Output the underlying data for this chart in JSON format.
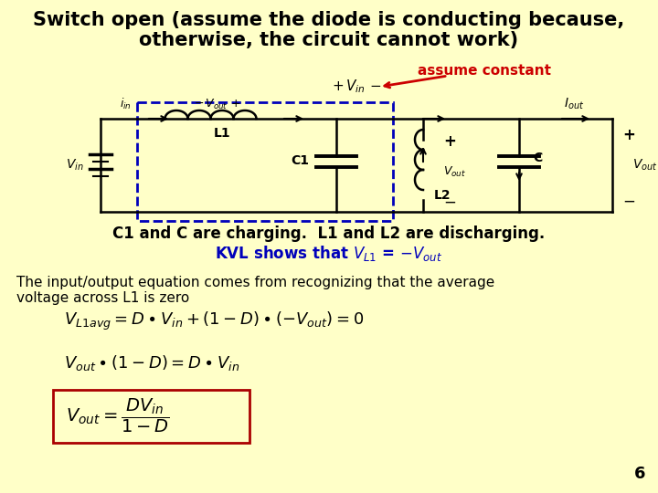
{
  "bg_color": "#FFFFC8",
  "title_line1": "Switch open (assume the diode is conducting because,",
  "title_line2": "otherwise, the circuit cannot work)",
  "title_color": "#000000",
  "title_fontsize": 15,
  "assume_constant_text": "assume constant",
  "assume_constant_color": "#CC0000",
  "circuit_text_color": "#000000",
  "circuit_line_color": "#000000",
  "dashed_box_color": "#0000BB",
  "charging_text": "C1 and C are charging.  L1 and L2 are discharging.",
  "charging_color": "#000000",
  "kvl_color": "#0000BB",
  "body_color": "#000000",
  "eq_color": "#000000",
  "box_color": "#AA0000",
  "page_number": "6"
}
